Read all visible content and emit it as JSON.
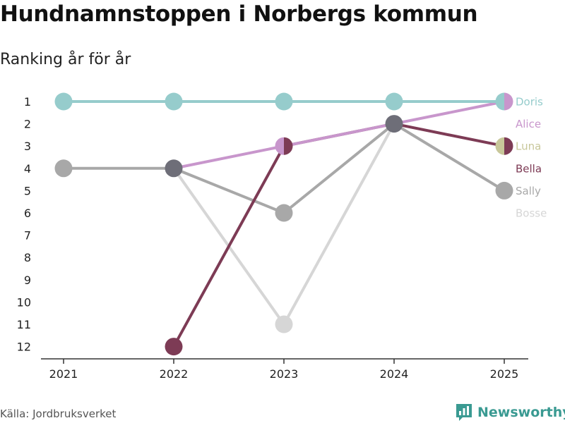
{
  "title": "Hundnamnstoppen i Norbergs kommun",
  "subtitle": "Ranking år för år",
  "source": "Källa: Jordbruksverket",
  "brand": {
    "name": "Newsworthy",
    "logo_icon": "newsworthy-chart-icon",
    "color": "#3a9a92"
  },
  "chart_data": {
    "type": "line",
    "title": "Hundnamnstoppen i Norbergs kommun",
    "subtitle": "Ranking år för år",
    "xlabel": "",
    "ylabel": "",
    "x": [
      "2021",
      "2022",
      "2023",
      "2024",
      "2025"
    ],
    "y_ticks": [
      "1",
      "2",
      "3",
      "4",
      "5",
      "6",
      "7",
      "8",
      "9",
      "10",
      "11",
      "12"
    ],
    "ylim": [
      12,
      1
    ],
    "y_reversed": true,
    "series": [
      {
        "name": "Bosse",
        "color": "#d6d6d6",
        "values": [
          null,
          4,
          11,
          2,
          null
        ]
      },
      {
        "name": "Sally",
        "color": "#a8a8a8",
        "values": [
          4,
          4,
          6,
          2,
          5
        ]
      },
      {
        "name": "Bella",
        "color": "#7d3b55",
        "values": [
          null,
          12,
          3,
          2,
          3
        ]
      },
      {
        "name": "Luna",
        "color": "#c8c79a",
        "values": [
          null,
          null,
          null,
          null,
          3
        ]
      },
      {
        "name": "Alice",
        "color": "#c896cc",
        "values": [
          null,
          4,
          3,
          2,
          1
        ]
      },
      {
        "name": "Doris",
        "color": "#96cccc",
        "values": [
          1,
          1,
          1,
          1,
          1
        ]
      }
    ],
    "label_order": [
      "Doris",
      "Alice",
      "Luna",
      "Bella",
      "Sally",
      "Bosse"
    ],
    "shared_points": [
      {
        "x": "2022",
        "rank": 4,
        "color": "#6e6e78"
      },
      {
        "x": "2024",
        "rank": 2,
        "color": "#6e6e78"
      }
    ]
  }
}
